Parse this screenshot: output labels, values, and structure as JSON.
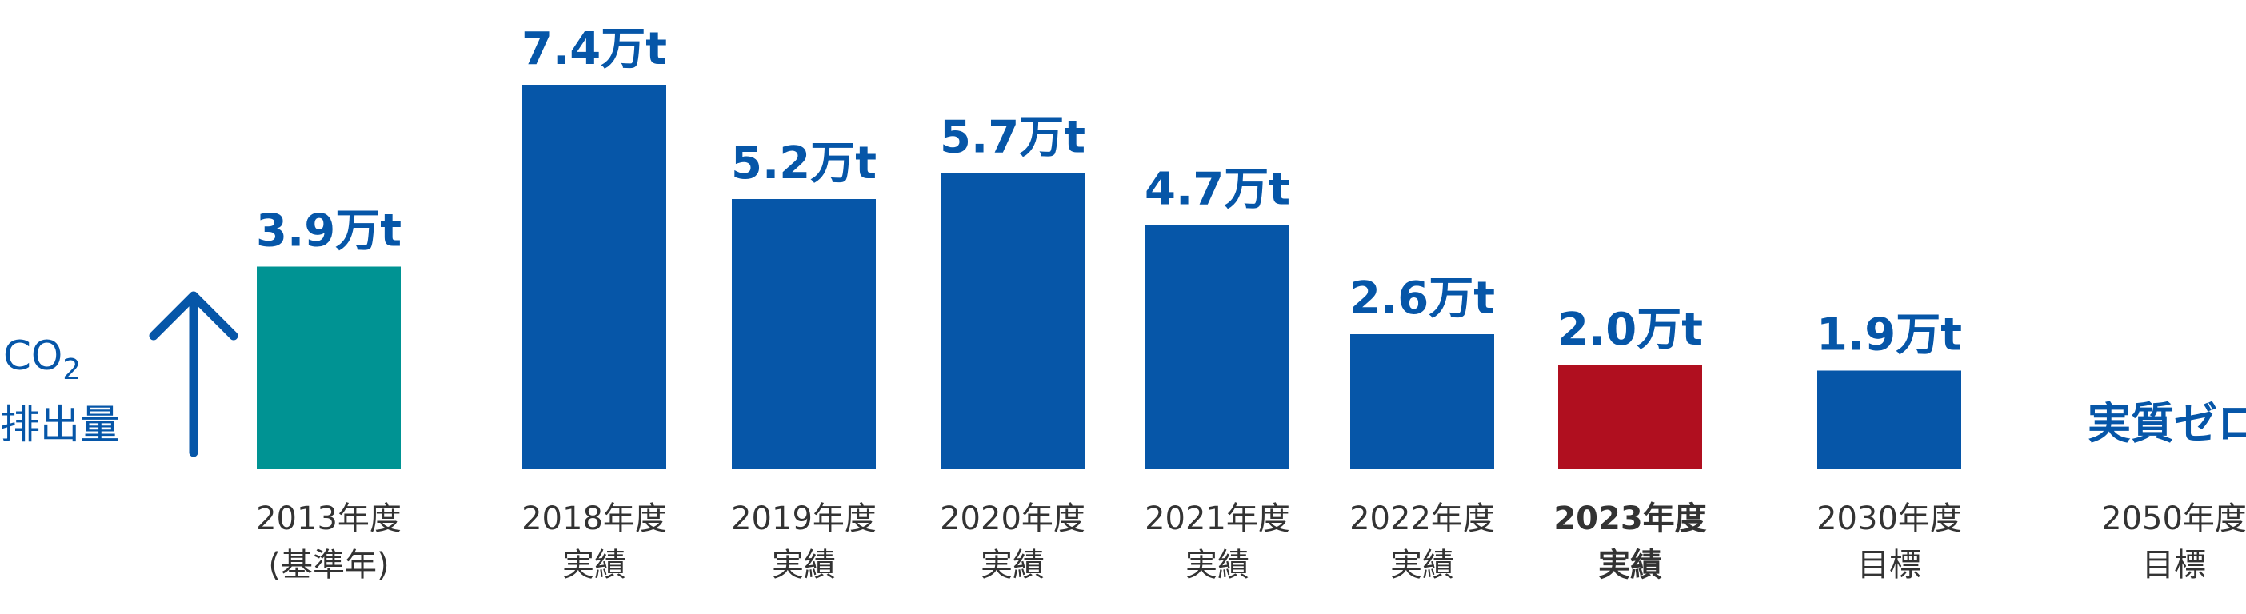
{
  "chart_data": {
    "type": "bar",
    "y_axis_label": {
      "line1_main": "CO",
      "line1_sub": "2",
      "line2": "排出量"
    },
    "categories": [
      {
        "line1": "2013年度",
        "line2": "(基準年)",
        "bold": false
      },
      {
        "line1": "2018年度",
        "line2": "実績",
        "bold": false
      },
      {
        "line1": "2019年度",
        "line2": "実績",
        "bold": false
      },
      {
        "line1": "2020年度",
        "line2": "実績",
        "bold": false
      },
      {
        "line1": "2021年度",
        "line2": "実績",
        "bold": false
      },
      {
        "line1": "2022年度",
        "line2": "実績",
        "bold": false
      },
      {
        "line1": "2023年度",
        "line2": "実績",
        "bold": true
      },
      {
        "line1": "2030年度",
        "line2": "目標",
        "bold": false
      },
      {
        "line1": "2050年度",
        "line2": "目標",
        "bold": false
      }
    ],
    "values": [
      3.9,
      7.4,
      5.2,
      5.7,
      4.7,
      2.6,
      2.0,
      1.9,
      null
    ],
    "value_labels": [
      "3.9万t",
      "7.4万t",
      "5.2万t",
      "5.7万t",
      "4.7万t",
      "2.6万t",
      "2.0万t",
      "1.9万t",
      "実質ゼロ"
    ],
    "unit": "万t",
    "ylim": [
      0,
      7.4
    ],
    "grid": false,
    "legend": "none",
    "colors": {
      "baseline": "#009393",
      "actual": "#0656a8",
      "current": "#b00f1f",
      "target": "#0656a8",
      "text": "#333333",
      "accent_text": "#0656a8"
    },
    "bar_roles": [
      "baseline",
      "actual",
      "actual",
      "actual",
      "actual",
      "actual",
      "current",
      "target",
      "target"
    ]
  }
}
